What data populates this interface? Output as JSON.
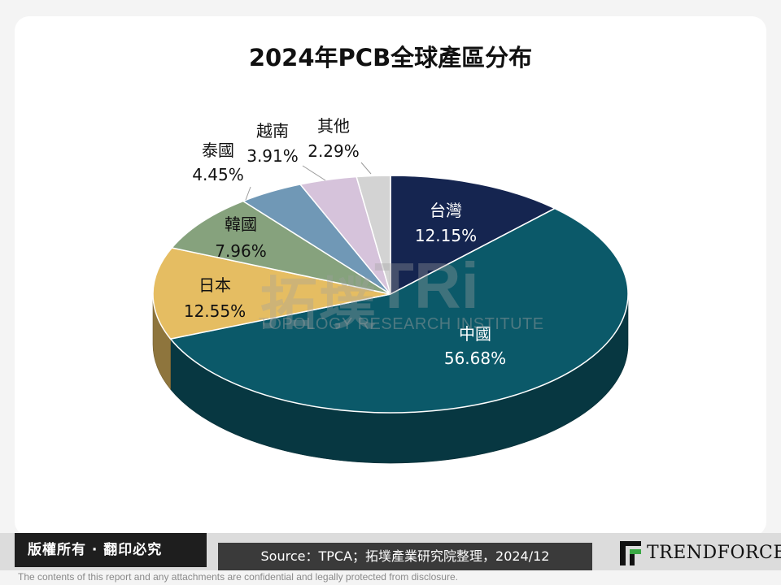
{
  "page": {
    "title": "2024年PCB全球產區分布",
    "copyright": "版權所有 · 翻印必究",
    "source": "Source：TPCA；拓墣產業研究院整理，2024/12",
    "brand": "TRENDFORCE",
    "disclaimer": "The contents of this report and any attachments are confidential and legally protected from disclosure.",
    "watermark_cn": "拓墣",
    "watermark_tri": "TRi",
    "watermark_en": "TOPOLOGY RESEARCH INSTITUTE"
  },
  "chart_data": {
    "type": "pie",
    "title": "2024年PCB全球產區分布",
    "unit": "%",
    "slices": [
      {
        "label": "台灣",
        "value_label": "12.15%",
        "value": 12.15,
        "color": "#152550",
        "text_color": "#ffffff"
      },
      {
        "label": "中國",
        "value_label": "56.68%",
        "value": 56.68,
        "color": "#0b5969",
        "text_color": "#ffffff"
      },
      {
        "label": "日本",
        "value_label": "12.55%",
        "value": 12.55,
        "color": "#e5bd62",
        "text_color": "#111111"
      },
      {
        "label": "韓國",
        "value_label": "7.96%",
        "value": 7.96,
        "color": "#86a27d",
        "text_color": "#111111"
      },
      {
        "label": "泰國",
        "value_label": "4.45%",
        "value": 4.45,
        "color": "#7098b6",
        "text_color": "#111111"
      },
      {
        "label": "越南",
        "value_label": "3.91%",
        "value": 3.91,
        "color": "#d6c3db",
        "text_color": "#111111"
      },
      {
        "label": "其他",
        "value_label": "2.29%",
        "value": 2.29,
        "color": "#d3d3d3",
        "text_color": "#111111"
      }
    ]
  }
}
